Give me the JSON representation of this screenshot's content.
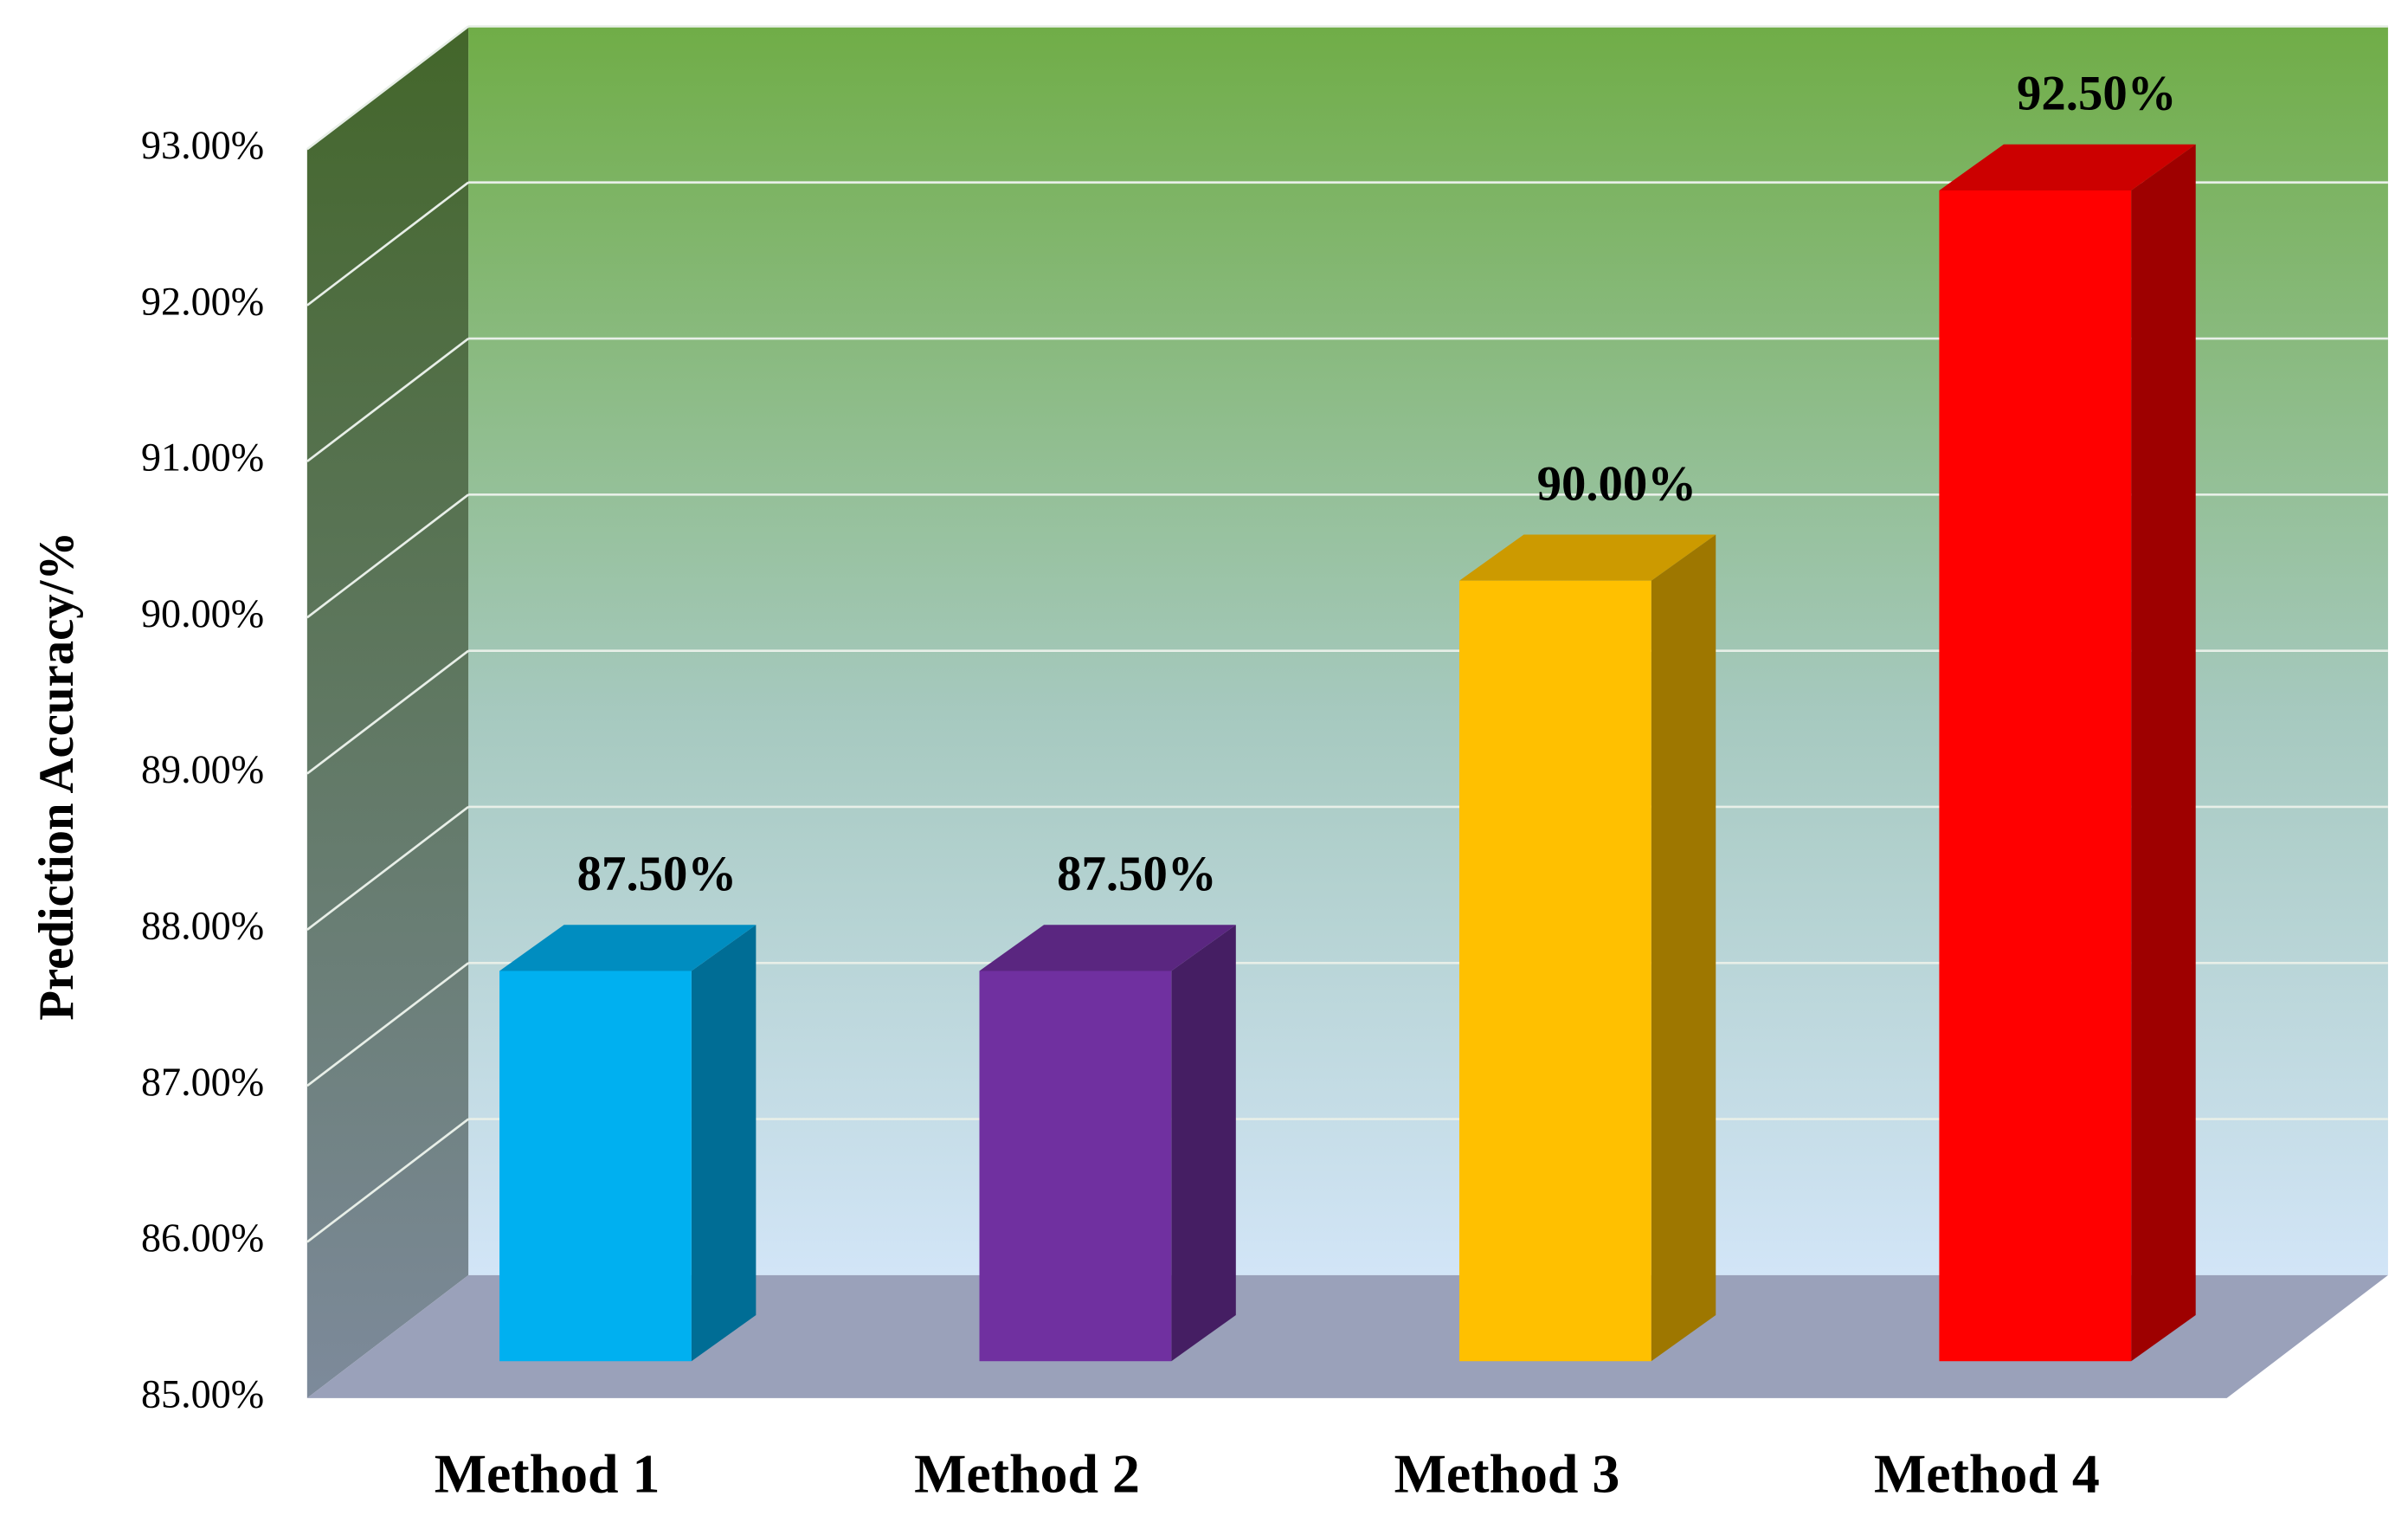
{
  "chart_data": {
    "type": "bar3d",
    "y_label": "Prediction Accuracy/%",
    "categories": [
      "Method 1",
      "Method 2",
      "Method 3",
      "Method 4"
    ],
    "values": [
      87.5,
      87.5,
      90,
      92.5
    ],
    "value_labels": [
      "87.50%",
      "87.50%",
      "90.00%",
      "92.50%"
    ],
    "colors": [
      "#00b0f0",
      "#7030a0",
      "#ffc000",
      "#ff0000"
    ],
    "ylim": [
      85,
      93
    ],
    "yticks": [
      {
        "value": 85,
        "label": "85.00%"
      },
      {
        "value": 86,
        "label": "86.00%"
      },
      {
        "value": 87,
        "label": "87.00%"
      },
      {
        "value": 88,
        "label": "88.00%"
      },
      {
        "value": 89,
        "label": "89.00%"
      },
      {
        "value": 90,
        "label": "90.00%"
      },
      {
        "value": 91,
        "label": "91.00%"
      },
      {
        "value": 92,
        "label": "92.00%"
      },
      {
        "value": 93,
        "label": "93.00%"
      }
    ],
    "grid": true
  }
}
